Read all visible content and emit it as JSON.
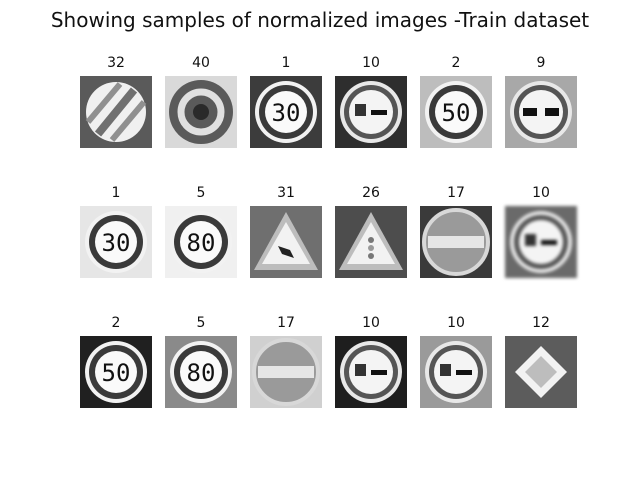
{
  "figure": {
    "title": "Showing samples of normalized images -Train dataset",
    "samples": [
      {
        "label": "32",
        "sign": "end-restriction"
      },
      {
        "label": "40",
        "sign": "roundabout"
      },
      {
        "label": "1",
        "sign": "speed-limit",
        "text": "30"
      },
      {
        "label": "10",
        "sign": "no-overtaking-trucks"
      },
      {
        "label": "2",
        "sign": "speed-limit",
        "text": "50"
      },
      {
        "label": "9",
        "sign": "no-overtaking"
      },
      {
        "label": "1",
        "sign": "speed-limit",
        "text": "30"
      },
      {
        "label": "5",
        "sign": "speed-limit",
        "text": "80"
      },
      {
        "label": "31",
        "sign": "warning-animal"
      },
      {
        "label": "26",
        "sign": "warning-traffic-signals"
      },
      {
        "label": "17",
        "sign": "no-entry"
      },
      {
        "label": "10",
        "sign": "no-overtaking-trucks-blurred"
      },
      {
        "label": "2",
        "sign": "speed-limit",
        "text": "50"
      },
      {
        "label": "5",
        "sign": "speed-limit",
        "text": "80"
      },
      {
        "label": "17",
        "sign": "no-entry"
      },
      {
        "label": "10",
        "sign": "no-overtaking-trucks"
      },
      {
        "label": "10",
        "sign": "no-overtaking-trucks"
      },
      {
        "label": "12",
        "sign": "priority-road"
      }
    ]
  }
}
